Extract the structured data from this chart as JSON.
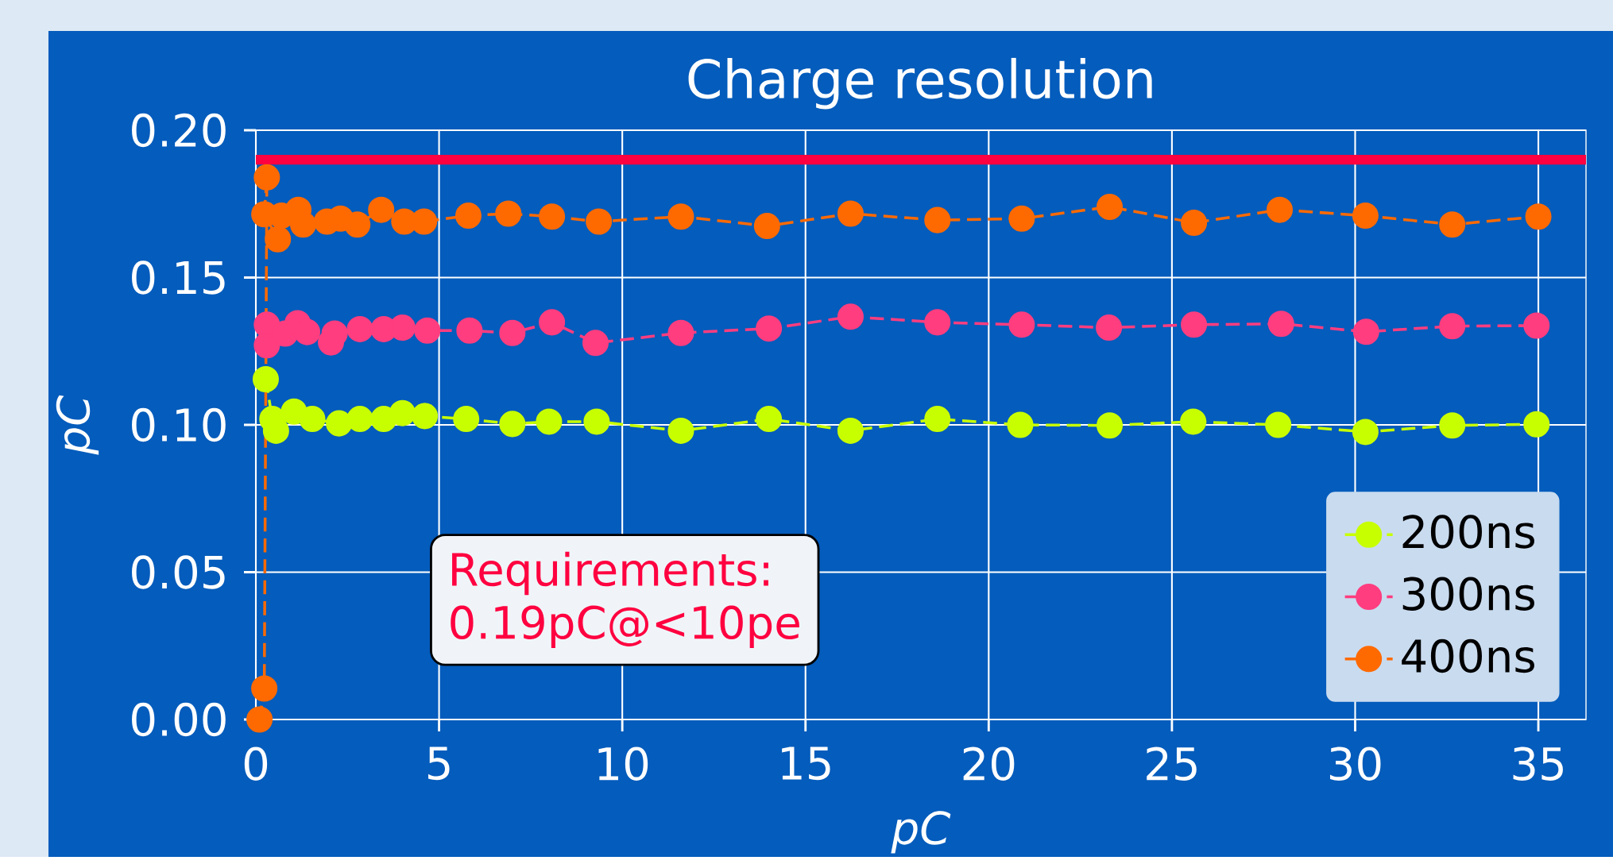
{
  "chart_data": {
    "type": "line",
    "title": "Charge resolution",
    "xlabel": "pC",
    "ylabel": "pC",
    "xlim": [
      0,
      36.3
    ],
    "ylim": [
      0,
      0.2
    ],
    "xticks": [
      0,
      5,
      10,
      15,
      20,
      25,
      30,
      35
    ],
    "yticks": [
      {
        "value": 0,
        "label": "0.00"
      },
      {
        "value": 0.05,
        "label": "0.05"
      },
      {
        "value": 0.1,
        "label": "0.10"
      },
      {
        "value": 0.15,
        "label": "0.15"
      },
      {
        "value": 0.2,
        "label": "0.20"
      }
    ],
    "grid": true,
    "legend": "bottom right",
    "marker": "circle",
    "line_style": "dashed",
    "series": [
      {
        "name": "200ns",
        "color": "#c8ff00",
        "x": [
          0.27,
          0.45,
          0.55,
          1.04,
          1.54,
          2.27,
          2.84,
          3.49,
          4.0,
          4.61,
          5.74,
          7.0,
          8.0,
          9.3,
          11.6,
          14.0,
          16.23,
          18.6,
          20.86,
          23.3,
          25.58,
          27.9,
          30.28,
          32.65,
          34.95
        ],
        "values": [
          0.1155,
          0.102,
          0.098,
          0.1045,
          0.102,
          0.1005,
          0.102,
          0.102,
          0.104,
          0.103,
          0.102,
          0.1003,
          0.1011,
          0.1011,
          0.098,
          0.102,
          0.098,
          0.102,
          0.1,
          0.0998,
          0.1011,
          0.1,
          0.0976,
          0.0998,
          0.1002
        ]
      },
      {
        "name": "300ns",
        "color": "#ff3d7f",
        "x": [
          0.3,
          0.3,
          0.8,
          1.14,
          1.4,
          2.05,
          2.15,
          2.84,
          3.49,
          4.0,
          4.68,
          5.83,
          7.0,
          8.08,
          9.27,
          11.6,
          14.0,
          16.23,
          18.6,
          20.9,
          23.28,
          25.6,
          27.98,
          30.3,
          32.65,
          34.95
        ],
        "values": [
          0.127,
          0.134,
          0.131,
          0.1345,
          0.1315,
          0.128,
          0.131,
          0.1325,
          0.1325,
          0.133,
          0.132,
          0.132,
          0.1312,
          0.1348,
          0.1278,
          0.1312,
          0.1327,
          0.1367,
          0.1348,
          0.134,
          0.133,
          0.134,
          0.1343,
          0.1316,
          0.1335,
          0.1337
        ]
      },
      {
        "name": "400ns",
        "color": "#ff6a00",
        "x": [
          0.1,
          0.23,
          0.3,
          0.23,
          0.6,
          0.7,
          1.16,
          1.29,
          1.94,
          2.31,
          2.77,
          3.42,
          4.05,
          4.59,
          5.8,
          6.89,
          8.08,
          9.36,
          11.6,
          13.95,
          16.23,
          18.6,
          20.9,
          23.3,
          25.6,
          27.94,
          30.28,
          32.65,
          35.0
        ],
        "values": [
          0.0,
          0.0105,
          0.184,
          0.1715,
          0.163,
          0.171,
          0.173,
          0.168,
          0.169,
          0.17,
          0.168,
          0.173,
          0.169,
          0.169,
          0.171,
          0.1717,
          0.1707,
          0.169,
          0.1707,
          0.1675,
          0.1717,
          0.1695,
          0.17,
          0.174,
          0.1686,
          0.173,
          0.171,
          0.168,
          0.1707
        ]
      }
    ],
    "ref_lines": [
      {
        "axis": "y",
        "value": 0.19,
        "color": "#ff0040"
      }
    ],
    "annotations": [
      "Requirements:",
      "0.19pC@<10pe"
    ]
  }
}
